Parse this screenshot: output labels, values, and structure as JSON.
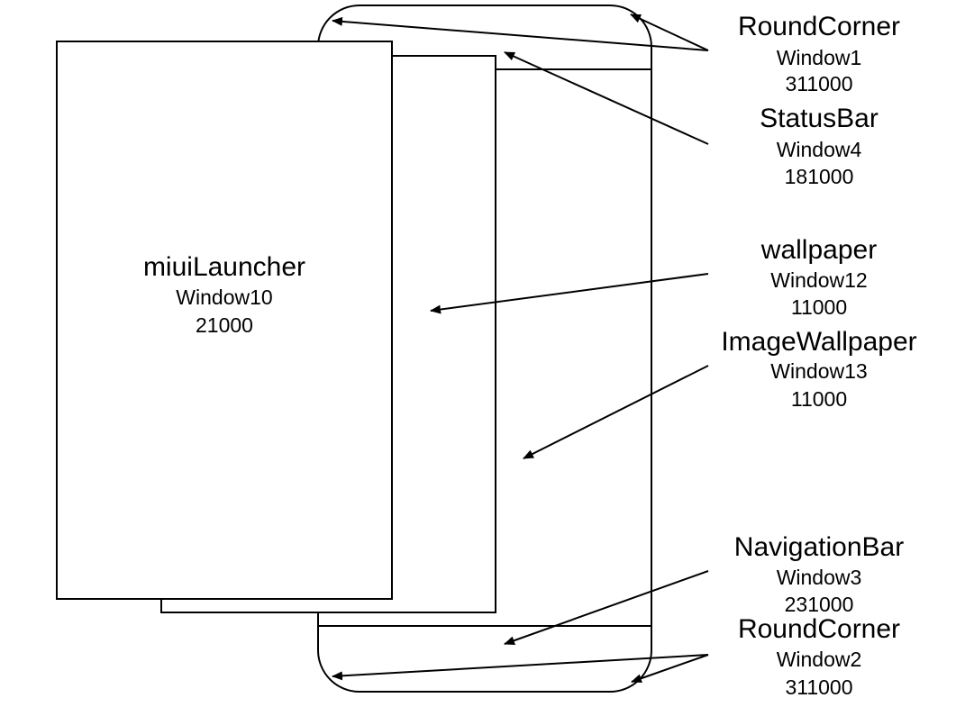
{
  "launcher": {
    "name": "miuiLauncher",
    "window": "Window10",
    "layer": "21000"
  },
  "labels": {
    "round_corner_top": {
      "name": "RoundCorner",
      "window": "Window1",
      "layer": "311000"
    },
    "status_bar": {
      "name": "StatusBar",
      "window": "Window4",
      "layer": "181000"
    },
    "wallpaper": {
      "name": "wallpaper",
      "window": "Window12",
      "layer": "11000"
    },
    "image_wallpaper": {
      "name": "ImageWallpaper",
      "window": "Window13",
      "layer": "11000"
    },
    "navigation_bar": {
      "name": "NavigationBar",
      "window": "Window3",
      "layer": "231000"
    },
    "round_corner_bottom": {
      "name": "RoundCorner",
      "window": "Window2",
      "layer": "311000"
    }
  }
}
